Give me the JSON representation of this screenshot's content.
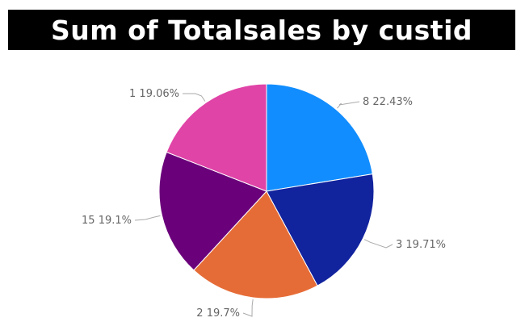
{
  "chart_data": {
    "type": "pie",
    "title": "Sum of Totalsales by custid",
    "slices": [
      {
        "label": "8",
        "percent": 22.43,
        "percent_label": "22.43%",
        "color": "#118DFF"
      },
      {
        "label": "3",
        "percent": 19.71,
        "percent_label": "19.71%",
        "color": "#12239E"
      },
      {
        "label": "2",
        "percent": 19.7,
        "percent_label": "19.7%",
        "color": "#E66C37"
      },
      {
        "label": "15",
        "percent": 19.1,
        "percent_label": "19.1%",
        "color": "#6B007B"
      },
      {
        "label": "1",
        "percent": 19.06,
        "percent_label": "19.06%",
        "color": "#E044A7"
      }
    ],
    "legend": "none",
    "start_angle": "12 o'clock, clockwise"
  }
}
